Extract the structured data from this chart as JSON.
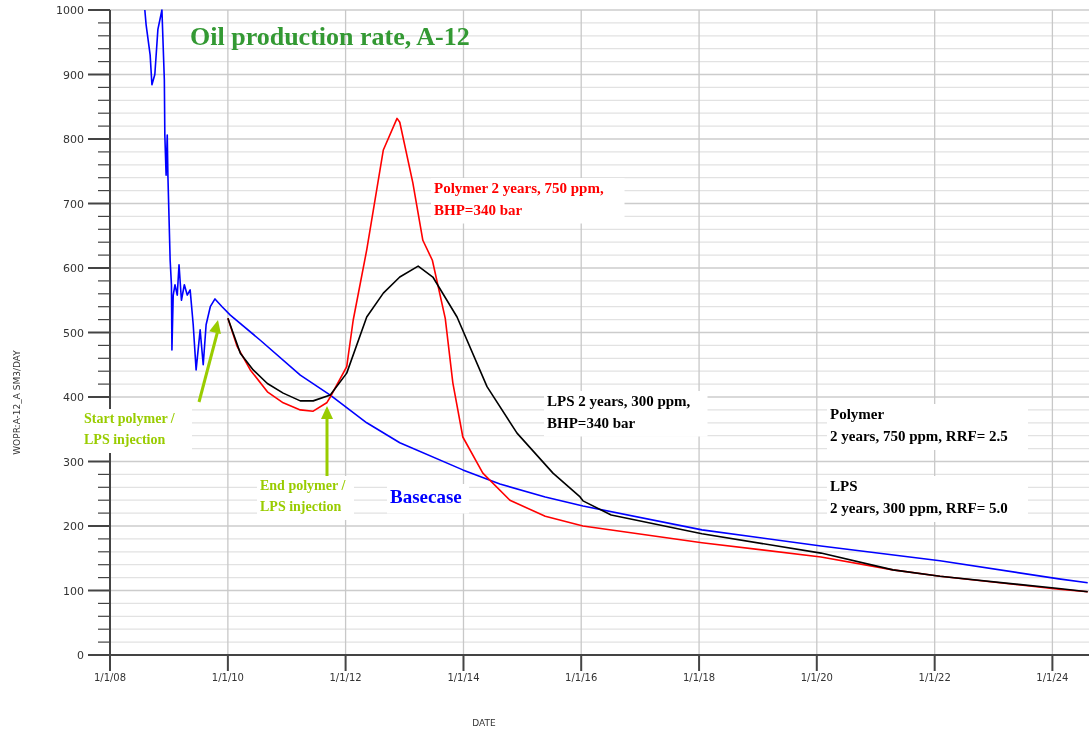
{
  "chart_data": {
    "type": "line",
    "title": "Oil production rate, A-12",
    "xlabel": "DATE",
    "ylabel": "WOPR:A-12_A  SM3/DAY",
    "xlim": [
      "2008-01-01",
      "2024-08-15"
    ],
    "ylim": [
      0,
      1000
    ],
    "xticks": [
      {
        "value": "2008-01-01",
        "label": "1/1/08"
      },
      {
        "value": "2010-01-01",
        "label": "1/1/10"
      },
      {
        "value": "2012-01-01",
        "label": "1/1/12"
      },
      {
        "value": "2014-01-01",
        "label": "1/1/14"
      },
      {
        "value": "2016-01-01",
        "label": "1/1/16"
      },
      {
        "value": "2018-01-01",
        "label": "1/1/18"
      },
      {
        "value": "2020-01-01",
        "label": "1/1/20"
      },
      {
        "value": "2022-01-01",
        "label": "1/1/22"
      },
      {
        "value": "2024-01-01",
        "label": "1/1/24"
      }
    ],
    "yticks": [
      0,
      {
        "value": 20,
        "label": null
      },
      {
        "value": 40,
        "label": null
      },
      {
        "value": 60,
        "label": null
      },
      {
        "value": 80,
        "label": null
      },
      100,
      {
        "value": 120,
        "label": null
      },
      {
        "value": 140,
        "label": null
      },
      {
        "value": 160,
        "label": null
      },
      {
        "value": 180,
        "label": null
      },
      200,
      {
        "value": 220,
        "label": null
      },
      {
        "value": 240,
        "label": null
      },
      {
        "value": 260,
        "label": null
      },
      {
        "value": 280,
        "label": null
      },
      300,
      {
        "value": 320,
        "label": null
      },
      {
        "value": 340,
        "label": null
      },
      {
        "value": 360,
        "label": null
      },
      {
        "value": 380,
        "label": null
      },
      400,
      {
        "value": 420,
        "label": null
      },
      {
        "value": 440,
        "label": null
      },
      {
        "value": 460,
        "label": null
      },
      {
        "value": 480,
        "label": null
      },
      500,
      {
        "value": 520,
        "label": null
      },
      {
        "value": 540,
        "label": null
      },
      {
        "value": 560,
        "label": null
      },
      {
        "value": 580,
        "label": null
      },
      600,
      {
        "value": 620,
        "label": null
      },
      {
        "value": 640,
        "label": null
      },
      {
        "value": 660,
        "label": null
      },
      {
        "value": 680,
        "label": null
      },
      700,
      {
        "value": 720,
        "label": null
      },
      {
        "value": 740,
        "label": null
      },
      {
        "value": 760,
        "label": null
      },
      {
        "value": 780,
        "label": null
      },
      800,
      {
        "value": 820,
        "label": null
      },
      {
        "value": 840,
        "label": null
      },
      {
        "value": 860,
        "label": null
      },
      {
        "value": 880,
        "label": null
      },
      900,
      {
        "value": 920,
        "label": null
      },
      {
        "value": 940,
        "label": null
      },
      {
        "value": 960,
        "label": null
      },
      {
        "value": 980,
        "label": null
      },
      1000
    ],
    "grid": true,
    "line_style": "solid",
    "marker": "none",
    "series": [
      {
        "name": "Basecase",
        "color": "#0000ff",
        "x": [
          "2008-08-04",
          "2008-08-12",
          "2008-09-06",
          "2008-09-17",
          "2008-10-05",
          "2008-10-24",
          "2008-11-18",
          "2008-12-03",
          "2008-12-06",
          "2008-12-14",
          "2008-12-21",
          "2008-12-25",
          "2009-01-08",
          "2009-01-16",
          "2009-01-19",
          "2009-01-27",
          "2009-02-07",
          "2009-02-21",
          "2009-03-04",
          "2009-03-19",
          "2009-04-06",
          "2009-04-24",
          "2009-05-12",
          "2009-05-31",
          "2009-06-18",
          "2009-07-13",
          "2009-08-01",
          "2009-08-19",
          "2009-09-14",
          "2009-10-13",
          "2009-11-26",
          "2010-01-16",
          "2010-07-21",
          "2011-03-26",
          "2011-09-28",
          "2012-05-11",
          "2012-12-02",
          "2013-12-28",
          "2014-08-15",
          "2015-05-23",
          "2016-01-12",
          "2018-01-19",
          "2020-01-27",
          "2022-02-03",
          "2024-02-10",
          "2024-08-07"
        ],
        "values": [
          1000,
          977,
          930,
          884,
          900,
          970,
          1000,
          892,
          806,
          744,
          806,
          744,
          612,
          574,
          473,
          558,
          574,
          558,
          605,
          550,
          574,
          558,
          566,
          512,
          442,
          504,
          450,
          512,
          540,
          552,
          540,
          527,
          488,
          434,
          403,
          360,
          329,
          287,
          265,
          245,
          231,
          194,
          169,
          146,
          118,
          112
        ]
      },
      {
        "name": "Polymer 2 years, 750 ppm,\nBHP=340 bar",
        "color": "#ff0000",
        "x": [
          "2010-01-01",
          "2010-02-28",
          "2010-05-20",
          "2010-09-03",
          "2010-12-10",
          "2011-03-26",
          "2011-06-14",
          "2011-09-06",
          "2011-09-28",
          "2012-01-08",
          "2012-02-17",
          "2012-05-11",
          "2012-08-22",
          "2012-11-15",
          "2012-12-02",
          "2013-02-21",
          "2013-04-24",
          "2013-06-22",
          "2013-09-10",
          "2013-10-27",
          "2013-12-28",
          "2014-05-01",
          "2014-10-16",
          "2015-05-23",
          "2016-01-12",
          "2018-01-19",
          "2020-01-27",
          "2021-04-17",
          "2022-02-03",
          "2024-02-10",
          "2024-08-07"
        ],
        "values": [
          522,
          478,
          442,
          408,
          391,
          380,
          378,
          391,
          400,
          447,
          519,
          628,
          783,
          832,
          826,
          732,
          643,
          612,
          522,
          422,
          338,
          282,
          240,
          215,
          200,
          174,
          152,
          132,
          122,
          102,
          98
        ]
      },
      {
        "name": "LPS 2 years, 300 ppm,\nBHP=340 bar",
        "color": "#000000",
        "x": [
          "2010-01-01",
          "2010-03-19",
          "2010-06-07",
          "2010-09-03",
          "2010-12-10",
          "2011-03-26",
          "2011-06-14",
          "2011-09-28",
          "2012-01-08",
          "2012-05-11",
          "2012-08-22",
          "2012-12-02",
          "2013-03-26",
          "2013-06-25",
          "2013-11-22",
          "2014-05-27",
          "2014-11-29",
          "2015-07-10",
          "2015-12-25",
          "2016-01-12",
          "2016-07-05",
          "2018-01-19",
          "2020-01-27",
          "2021-04-17",
          "2022-02-03",
          "2024-02-10",
          "2024-08-07"
        ],
        "values": [
          522,
          468,
          442,
          421,
          406,
          394,
          394,
          403,
          437,
          524,
          561,
          586,
          603,
          586,
          524,
          416,
          344,
          282,
          245,
          239,
          217,
          188,
          158,
          132,
          122,
          103,
          98
        ]
      }
    ],
    "annotations": [
      "Start polymer /\nLPS injection",
      "End polymer /\nLPS injection",
      "Polymer\n2 years, 750 ppm, RRF= 2.5",
      "LPS\n2 years, 300 ppm, RRF= 5.0"
    ]
  }
}
